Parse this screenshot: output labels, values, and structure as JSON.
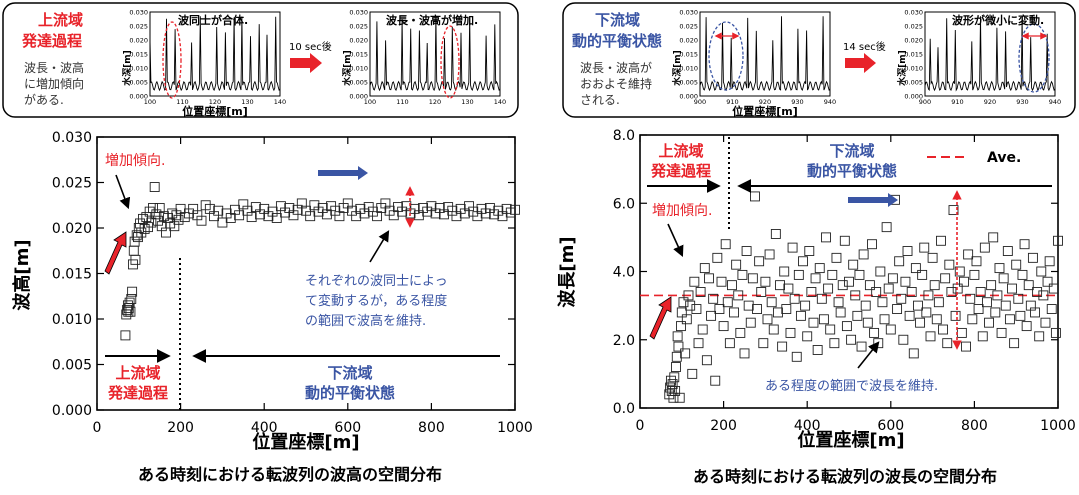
{
  "colors": {
    "red": "#e8232a",
    "blue": "#3a55a4",
    "black": "#000000"
  },
  "left": {
    "box": {
      "title1": "上流域",
      "title2": "発達過程",
      "desc": [
        "波長・波高",
        "に増加傾向",
        "がある."
      ],
      "ylabel": "水深[m]",
      "xlabel": "位置座標[m]",
      "arrow_text": "10 sec後",
      "plot1": {
        "ann": "波同士が合体.",
        "yticks": [
          "0.030",
          "0.025",
          "0.020",
          "0.015",
          "0.010",
          "0.005",
          "0.000"
        ],
        "xticks": [
          "100",
          "110",
          "120",
          "130",
          "140"
        ]
      },
      "plot2": {
        "ann": "波長・波高が増加.",
        "yticks": [
          "0.030",
          "0.025",
          "0.020",
          "0.015",
          "0.010",
          "0.005",
          "0.000"
        ],
        "xticks": [
          "100",
          "110",
          "120",
          "130",
          "140"
        ]
      }
    },
    "ann": {
      "zoka": "増加傾向.",
      "jr1": "上流域",
      "jr2": "発達過程",
      "ka1": "下流域",
      "ka2": "動的平衡状態",
      "note": [
        "それぞれの波同士によっ",
        "て変動するが，ある程度",
        "の範囲で波高を維持."
      ]
    },
    "caption": "ある時刻における転波列の波高の空間分布"
  },
  "right": {
    "box": {
      "title1": "下流域",
      "title2": "動的平衡状態",
      "desc": [
        "波長・波高が",
        "おおよそ維持",
        "される."
      ],
      "ylabel": "水深[m]",
      "xlabel": "位置座標[m]",
      "arrow_text": "14 sec後",
      "plot1": {
        "ann": "",
        "yticks": [
          "0.030",
          "0.025",
          "0.020",
          "0.015",
          "0.010",
          "0.005",
          "0.000"
        ],
        "xticks": [
          "900",
          "910",
          "920",
          "930",
          "940"
        ]
      },
      "plot2": {
        "ann": "波形が微小に変動.",
        "yticks": [
          "0.030",
          "0.025",
          "0.020",
          "0.015",
          "0.010",
          "0.005",
          "0.000"
        ],
        "xticks": [
          "900",
          "910",
          "920",
          "930",
          "940"
        ]
      }
    },
    "ann": {
      "jr1": "上流域",
      "jr2": "発達過程",
      "ka1": "下流域",
      "ka2": "動的平衡状態",
      "zoka": "増加傾向.",
      "note": "ある程度の範囲で波長を維持.",
      "legend": "Ave."
    },
    "caption": "ある時刻における転波列の波長の空間分布"
  },
  "chart_data": [
    {
      "type": "scatter",
      "xlabel": "位置座標[m]",
      "ylabel": "波高[m]",
      "xlim": [
        0,
        1000
      ],
      "ylim": [
        0,
        0.03
      ],
      "xticks": [
        0,
        200,
        400,
        600,
        800,
        1000
      ],
      "yticks": [
        0,
        0.005,
        0.01,
        0.015,
        0.02,
        0.025,
        0.03
      ],
      "xtick_labels": [
        "0",
        "200",
        "400",
        "600",
        "800",
        "1000"
      ],
      "ytick_labels": [
        "0.000",
        "0.005",
        "0.010",
        "0.015",
        "0.020",
        "0.025",
        "0.030"
      ],
      "points": [
        [
          68,
          0.0082
        ],
        [
          70,
          0.0105
        ],
        [
          72,
          0.011
        ],
        [
          74,
          0.0115
        ],
        [
          75,
          0.0108
        ],
        [
          76,
          0.0112
        ],
        [
          78,
          0.0118
        ],
        [
          80,
          0.0108
        ],
        [
          82,
          0.0122
        ],
        [
          84,
          0.013
        ],
        [
          86,
          0.016
        ],
        [
          88,
          0.0175
        ],
        [
          90,
          0.0185
        ],
        [
          92,
          0.0165
        ],
        [
          95,
          0.0192
        ],
        [
          98,
          0.019
        ],
        [
          100,
          0.02
        ],
        [
          103,
          0.0205
        ],
        [
          106,
          0.0195
        ],
        [
          110,
          0.021
        ],
        [
          114,
          0.0199
        ],
        [
          118,
          0.0212
        ],
        [
          122,
          0.0201
        ],
        [
          126,
          0.0218
        ],
        [
          130,
          0.0206
        ],
        [
          134,
          0.0222
        ],
        [
          138,
          0.0245
        ],
        [
          142,
          0.0215
        ],
        [
          146,
          0.0208
        ],
        [
          150,
          0.0222
        ],
        [
          155,
          0.0202
        ],
        [
          160,
          0.0213
        ],
        [
          165,
          0.0195
        ],
        [
          170,
          0.0211
        ],
        [
          175,
          0.0205
        ],
        [
          180,
          0.0216
        ],
        [
          185,
          0.0202
        ],
        [
          190,
          0.0214
        ],
        [
          195,
          0.0209
        ],
        [
          200,
          0.0221
        ],
        [
          210,
          0.0212
        ],
        [
          220,
          0.0216
        ],
        [
          230,
          0.0221
        ],
        [
          240,
          0.0214
        ],
        [
          250,
          0.0208
        ],
        [
          260,
          0.0225
        ],
        [
          270,
          0.0221
        ],
        [
          280,
          0.0213
        ],
        [
          290,
          0.0219
        ],
        [
          300,
          0.0206
        ],
        [
          310,
          0.0216
        ],
        [
          320,
          0.0211
        ],
        [
          330,
          0.022
        ],
        [
          340,
          0.0214
        ],
        [
          350,
          0.0226
        ],
        [
          360,
          0.0219
        ],
        [
          370,
          0.0212
        ],
        [
          380,
          0.0223
        ],
        [
          390,
          0.0215
        ],
        [
          400,
          0.0221
        ],
        [
          410,
          0.0213
        ],
        [
          420,
          0.0218
        ],
        [
          430,
          0.0211
        ],
        [
          440,
          0.0224
        ],
        [
          450,
          0.0217
        ],
        [
          460,
          0.0222
        ],
        [
          470,
          0.0214
        ],
        [
          480,
          0.022
        ],
        [
          490,
          0.0227
        ],
        [
          500,
          0.0219
        ],
        [
          510,
          0.0213
        ],
        [
          520,
          0.0225
        ],
        [
          530,
          0.0218
        ],
        [
          540,
          0.0222
        ],
        [
          550,
          0.0215
        ],
        [
          560,
          0.0224
        ],
        [
          570,
          0.0219
        ],
        [
          580,
          0.0213
        ],
        [
          590,
          0.0222
        ],
        [
          600,
          0.0227
        ],
        [
          610,
          0.0219
        ],
        [
          620,
          0.0213
        ],
        [
          630,
          0.0221
        ],
        [
          640,
          0.0216
        ],
        [
          650,
          0.0223
        ],
        [
          660,
          0.0218
        ],
        [
          670,
          0.0213
        ],
        [
          680,
          0.0222
        ],
        [
          690,
          0.0227
        ],
        [
          700,
          0.0219
        ],
        [
          710,
          0.0214
        ],
        [
          720,
          0.0223
        ],
        [
          730,
          0.0218
        ],
        [
          740,
          0.0224
        ],
        [
          750,
          0.0216
        ],
        [
          760,
          0.0221
        ],
        [
          770,
          0.0214
        ],
        [
          780,
          0.0222
        ],
        [
          790,
          0.0218
        ],
        [
          800,
          0.0224
        ],
        [
          810,
          0.0216
        ],
        [
          820,
          0.0222
        ],
        [
          830,
          0.0215
        ],
        [
          840,
          0.0223
        ],
        [
          850,
          0.0219
        ],
        [
          860,
          0.0213
        ],
        [
          870,
          0.0221
        ],
        [
          880,
          0.0216
        ],
        [
          890,
          0.0224
        ],
        [
          900,
          0.0218
        ],
        [
          910,
          0.0213
        ],
        [
          920,
          0.0221
        ],
        [
          930,
          0.0216
        ],
        [
          940,
          0.0222
        ],
        [
          950,
          0.0215
        ],
        [
          960,
          0.0219
        ],
        [
          970,
          0.0213
        ],
        [
          980,
          0.0221
        ],
        [
          990,
          0.0217
        ],
        [
          1000,
          0.022
        ]
      ]
    },
    {
      "type": "scatter",
      "xlabel": "位置座標[m]",
      "ylabel": "波長[m]",
      "xlim": [
        0,
        1000
      ],
      "ylim": [
        0,
        8
      ],
      "xticks": [
        0,
        200,
        400,
        600,
        800,
        1000
      ],
      "yticks": [
        0,
        2,
        4,
        6,
        8
      ],
      "xtick_labels": [
        "0",
        "200",
        "400",
        "600",
        "800",
        "1000"
      ],
      "ytick_labels": [
        "0.0",
        "2.0",
        "4.0",
        "6.0",
        "8.0"
      ],
      "average": 3.3,
      "points": [
        [
          70,
          0.4
        ],
        [
          72,
          0.6
        ],
        [
          74,
          0.8
        ],
        [
          76,
          0.5
        ],
        [
          78,
          0.7
        ],
        [
          80,
          0.3
        ],
        [
          82,
          0.9
        ],
        [
          84,
          0.5
        ],
        [
          86,
          1.2
        ],
        [
          88,
          1.5
        ],
        [
          90,
          2.1
        ],
        [
          92,
          1.8
        ],
        [
          95,
          0.3
        ],
        [
          98,
          2.4
        ],
        [
          100,
          2.8
        ],
        [
          104,
          3.1
        ],
        [
          108,
          1.6
        ],
        [
          112,
          2.6
        ],
        [
          116,
          3.3
        ],
        [
          120,
          3.0
        ],
        [
          125,
          1.0
        ],
        [
          130,
          3.7
        ],
        [
          135,
          2.9
        ],
        [
          140,
          1.9
        ],
        [
          145,
          3.4
        ],
        [
          150,
          2.3
        ],
        [
          155,
          4.1
        ],
        [
          160,
          1.4
        ],
        [
          165,
          3.8
        ],
        [
          170,
          2.7
        ],
        [
          175,
          3.2
        ],
        [
          180,
          0.8
        ],
        [
          185,
          4.4
        ],
        [
          190,
          2.9
        ],
        [
          195,
          3.7
        ],
        [
          200,
          2.4
        ],
        [
          205,
          4.8
        ],
        [
          210,
          3.1
        ],
        [
          215,
          1.9
        ],
        [
          220,
          3.6
        ],
        [
          225,
          2.8
        ],
        [
          230,
          4.2
        ],
        [
          235,
          3.3
        ],
        [
          240,
          2.2
        ],
        [
          245,
          3.9
        ],
        [
          250,
          1.6
        ],
        [
          255,
          4.6
        ],
        [
          260,
          3.0
        ],
        [
          265,
          2.5
        ],
        [
          270,
          3.8
        ],
        [
          275,
          6.2
        ],
        [
          280,
          2.9
        ],
        [
          285,
          4.3
        ],
        [
          290,
          3.4
        ],
        [
          295,
          1.9
        ],
        [
          300,
          3.7
        ],
        [
          305,
          2.6
        ],
        [
          310,
          4.5
        ],
        [
          315,
          3.1
        ],
        [
          320,
          2.3
        ],
        [
          325,
          5.1
        ],
        [
          330,
          2.8
        ],
        [
          335,
          3.6
        ],
        [
          340,
          1.8
        ],
        [
          345,
          4.0
        ],
        [
          350,
          2.9
        ],
        [
          355,
          3.5
        ],
        [
          360,
          2.2
        ],
        [
          365,
          4.7
        ],
        [
          370,
          3.2
        ],
        [
          375,
          1.5
        ],
        [
          380,
          3.9
        ],
        [
          385,
          2.7
        ],
        [
          390,
          4.3
        ],
        [
          395,
          3.0
        ],
        [
          400,
          2.1
        ],
        [
          405,
          4.6
        ],
        [
          410,
          3.4
        ],
        [
          415,
          2.5
        ],
        [
          420,
          3.8
        ],
        [
          425,
          1.7
        ],
        [
          430,
          4.1
        ],
        [
          435,
          3.2
        ],
        [
          440,
          2.6
        ],
        [
          445,
          5.0
        ],
        [
          450,
          3.5
        ],
        [
          455,
          2.3
        ],
        [
          460,
          3.9
        ],
        [
          465,
          1.9
        ],
        [
          470,
          4.4
        ],
        [
          475,
          3.1
        ],
        [
          480,
          2.8
        ],
        [
          485,
          3.6
        ],
        [
          490,
          4.9
        ],
        [
          495,
          2.4
        ],
        [
          500,
          3.7
        ],
        [
          505,
          2.0
        ],
        [
          510,
          4.2
        ],
        [
          515,
          3.3
        ],
        [
          520,
          2.7
        ],
        [
          525,
          3.9
        ],
        [
          530,
          1.8
        ],
        [
          535,
          4.5
        ],
        [
          540,
          3.0
        ],
        [
          545,
          2.5
        ],
        [
          550,
          3.6
        ],
        [
          555,
          4.8
        ],
        [
          560,
          2.2
        ],
        [
          565,
          3.4
        ],
        [
          570,
          1.9
        ],
        [
          575,
          4.0
        ],
        [
          580,
          3.1
        ],
        [
          585,
          2.6
        ],
        [
          590,
          5.3
        ],
        [
          595,
          3.5
        ],
        [
          600,
          2.3
        ],
        [
          605,
          3.8
        ],
        [
          610,
          6.1
        ],
        [
          615,
          2.9
        ],
        [
          620,
          4.3
        ],
        [
          625,
          3.2
        ],
        [
          630,
          2.0
        ],
        [
          635,
          3.7
        ],
        [
          640,
          4.6
        ],
        [
          645,
          2.7
        ],
        [
          650,
          3.4
        ],
        [
          655,
          1.6
        ],
        [
          660,
          4.1
        ],
        [
          665,
          3.0
        ],
        [
          670,
          2.5
        ],
        [
          675,
          3.9
        ],
        [
          680,
          4.7
        ],
        [
          685,
          2.8
        ],
        [
          690,
          3.3
        ],
        [
          695,
          2.1
        ],
        [
          700,
          4.4
        ],
        [
          705,
          3.6
        ],
        [
          710,
          2.6
        ],
        [
          715,
          3.1
        ],
        [
          720,
          4.9
        ],
        [
          725,
          2.3
        ],
        [
          730,
          3.8
        ],
        [
          735,
          1.9
        ],
        [
          740,
          4.2
        ],
        [
          745,
          3.4
        ],
        [
          750,
          5.8
        ],
        [
          755,
          2.7
        ],
        [
          760,
          3.5
        ],
        [
          765,
          4.0
        ],
        [
          770,
          2.2
        ],
        [
          775,
          3.7
        ],
        [
          780,
          1.8
        ],
        [
          785,
          4.5
        ],
        [
          790,
          3.2
        ],
        [
          795,
          2.6
        ],
        [
          800,
          3.9
        ],
        [
          805,
          4.3
        ],
        [
          810,
          2.9
        ],
        [
          815,
          3.4
        ],
        [
          820,
          2.1
        ],
        [
          825,
          4.7
        ],
        [
          830,
          3.1
        ],
        [
          835,
          2.5
        ],
        [
          840,
          3.6
        ],
        [
          845,
          5.0
        ],
        [
          850,
          2.8
        ],
        [
          855,
          3.3
        ],
        [
          860,
          4.1
        ],
        [
          865,
          2.2
        ],
        [
          870,
          3.8
        ],
        [
          875,
          3.0
        ],
        [
          880,
          4.6
        ],
        [
          885,
          2.6
        ],
        [
          890,
          3.5
        ],
        [
          895,
          1.9
        ],
        [
          900,
          4.2
        ],
        [
          905,
          3.2
        ],
        [
          910,
          2.7
        ],
        [
          915,
          3.9
        ],
        [
          920,
          4.8
        ],
        [
          925,
          2.4
        ],
        [
          930,
          3.6
        ],
        [
          935,
          3.0
        ],
        [
          940,
          4.4
        ],
        [
          945,
          2.8
        ],
        [
          950,
          3.4
        ],
        [
          955,
          2.1
        ],
        [
          960,
          4.0
        ],
        [
          965,
          3.3
        ],
        [
          970,
          2.5
        ],
        [
          975,
          3.7
        ],
        [
          980,
          4.3
        ],
        [
          985,
          2.9
        ],
        [
          990,
          3.5
        ],
        [
          995,
          2.2
        ],
        [
          1000,
          4.9
        ]
      ]
    }
  ]
}
